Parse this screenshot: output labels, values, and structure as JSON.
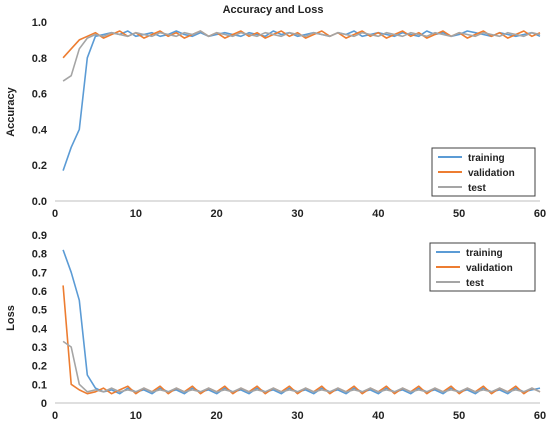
{
  "chart_data": [
    {
      "type": "line",
      "title": "Accuracy and Loss",
      "xlabel": "",
      "ylabel": "Accuracy",
      "xlim": [
        0,
        60
      ],
      "ylim": [
        0,
        1.0
      ],
      "xticks": [
        0,
        10,
        20,
        30,
        40,
        50,
        60
      ],
      "yticks": [
        0.0,
        0.2,
        0.4,
        0.6,
        0.8,
        1.0
      ],
      "ytick_labels": [
        "0.0",
        "0.2",
        "0.4",
        "0.6",
        "0.8",
        "1.0"
      ],
      "grid": false,
      "legend_position": "bottom-right",
      "x": [
        1,
        2,
        3,
        4,
        5,
        6,
        7,
        8,
        9,
        10,
        11,
        12,
        13,
        14,
        15,
        16,
        17,
        18,
        19,
        20,
        21,
        22,
        23,
        24,
        25,
        26,
        27,
        28,
        29,
        30,
        31,
        32,
        33,
        34,
        35,
        36,
        37,
        38,
        39,
        40,
        41,
        42,
        43,
        44,
        45,
        46,
        47,
        48,
        49,
        50,
        51,
        52,
        53,
        54,
        55,
        56,
        57,
        58,
        59,
        60
      ],
      "series": [
        {
          "name": "training",
          "color": "#5B9BD5",
          "values": [
            0.17,
            0.3,
            0.4,
            0.8,
            0.92,
            0.93,
            0.94,
            0.93,
            0.95,
            0.92,
            0.93,
            0.94,
            0.92,
            0.93,
            0.95,
            0.93,
            0.92,
            0.94,
            0.92,
            0.93,
            0.94,
            0.93,
            0.92,
            0.94,
            0.93,
            0.92,
            0.95,
            0.93,
            0.94,
            0.92,
            0.93,
            0.94,
            0.93,
            0.92,
            0.94,
            0.93,
            0.95,
            0.92,
            0.93,
            0.94,
            0.93,
            0.92,
            0.94,
            0.93,
            0.92,
            0.95,
            0.93,
            0.94,
            0.92,
            0.93,
            0.95,
            0.94,
            0.93,
            0.92,
            0.94,
            0.93,
            0.92,
            0.93,
            0.94,
            0.92
          ]
        },
        {
          "name": "validation",
          "color": "#ED7D31",
          "values": [
            0.8,
            0.85,
            0.9,
            0.92,
            0.94,
            0.91,
            0.93,
            0.95,
            0.92,
            0.94,
            0.91,
            0.93,
            0.95,
            0.92,
            0.94,
            0.91,
            0.93,
            0.95,
            0.92,
            0.94,
            0.91,
            0.93,
            0.95,
            0.92,
            0.94,
            0.91,
            0.93,
            0.95,
            0.92,
            0.94,
            0.91,
            0.93,
            0.95,
            0.92,
            0.94,
            0.91,
            0.93,
            0.95,
            0.92,
            0.94,
            0.91,
            0.93,
            0.95,
            0.92,
            0.94,
            0.91,
            0.93,
            0.95,
            0.92,
            0.94,
            0.91,
            0.93,
            0.95,
            0.92,
            0.94,
            0.91,
            0.93,
            0.95,
            0.92,
            0.94
          ]
        },
        {
          "name": "test",
          "color": "#A5A5A5",
          "values": [
            0.67,
            0.7,
            0.85,
            0.91,
            0.93,
            0.92,
            0.94,
            0.93,
            0.92,
            0.94,
            0.93,
            0.92,
            0.94,
            0.93,
            0.92,
            0.94,
            0.93,
            0.95,
            0.92,
            0.94,
            0.93,
            0.92,
            0.94,
            0.93,
            0.92,
            0.94,
            0.93,
            0.92,
            0.94,
            0.93,
            0.92,
            0.94,
            0.93,
            0.92,
            0.94,
            0.93,
            0.92,
            0.94,
            0.93,
            0.92,
            0.94,
            0.93,
            0.92,
            0.94,
            0.93,
            0.92,
            0.94,
            0.93,
            0.92,
            0.94,
            0.93,
            0.92,
            0.94,
            0.93,
            0.92,
            0.94,
            0.93,
            0.92,
            0.94,
            0.93
          ]
        }
      ]
    },
    {
      "type": "line",
      "title": "",
      "xlabel": "",
      "ylabel": "Loss",
      "xlim": [
        0,
        60
      ],
      "ylim": [
        0,
        0.9
      ],
      "xticks": [
        0,
        10,
        20,
        30,
        40,
        50,
        60
      ],
      "yticks": [
        0,
        0.1,
        0.2,
        0.3,
        0.4,
        0.5,
        0.6,
        0.7,
        0.8,
        0.9
      ],
      "ytick_labels": [
        "0",
        "0.1",
        "0.2",
        "0.3",
        "0.4",
        "0.5",
        "0.6",
        "0.7",
        "0.8",
        "0.9"
      ],
      "grid": false,
      "legend_position": "top-right",
      "x": [
        1,
        2,
        3,
        4,
        5,
        6,
        7,
        8,
        9,
        10,
        11,
        12,
        13,
        14,
        15,
        16,
        17,
        18,
        19,
        20,
        21,
        22,
        23,
        24,
        25,
        26,
        27,
        28,
        29,
        30,
        31,
        32,
        33,
        34,
        35,
        36,
        37,
        38,
        39,
        40,
        41,
        42,
        43,
        44,
        45,
        46,
        47,
        48,
        49,
        50,
        51,
        52,
        53,
        54,
        55,
        56,
        57,
        58,
        59,
        60
      ],
      "series": [
        {
          "name": "training",
          "color": "#5B9BD5",
          "values": [
            0.82,
            0.7,
            0.55,
            0.15,
            0.08,
            0.06,
            0.07,
            0.05,
            0.08,
            0.06,
            0.07,
            0.05,
            0.08,
            0.06,
            0.07,
            0.05,
            0.08,
            0.06,
            0.07,
            0.05,
            0.08,
            0.06,
            0.07,
            0.05,
            0.08,
            0.06,
            0.07,
            0.05,
            0.08,
            0.06,
            0.07,
            0.05,
            0.08,
            0.06,
            0.07,
            0.05,
            0.08,
            0.06,
            0.07,
            0.05,
            0.08,
            0.06,
            0.07,
            0.05,
            0.08,
            0.06,
            0.07,
            0.05,
            0.08,
            0.06,
            0.07,
            0.05,
            0.08,
            0.06,
            0.07,
            0.05,
            0.08,
            0.06,
            0.07,
            0.08
          ]
        },
        {
          "name": "validation",
          "color": "#ED7D31",
          "values": [
            0.63,
            0.1,
            0.07,
            0.05,
            0.06,
            0.08,
            0.05,
            0.07,
            0.09,
            0.05,
            0.08,
            0.06,
            0.09,
            0.05,
            0.08,
            0.06,
            0.09,
            0.05,
            0.08,
            0.06,
            0.09,
            0.05,
            0.08,
            0.06,
            0.09,
            0.05,
            0.08,
            0.06,
            0.09,
            0.05,
            0.08,
            0.06,
            0.09,
            0.05,
            0.08,
            0.06,
            0.09,
            0.05,
            0.08,
            0.06,
            0.09,
            0.05,
            0.08,
            0.06,
            0.09,
            0.05,
            0.08,
            0.06,
            0.09,
            0.05,
            0.08,
            0.06,
            0.09,
            0.05,
            0.08,
            0.06,
            0.09,
            0.05,
            0.08,
            0.06
          ]
        },
        {
          "name": "test",
          "color": "#A5A5A5",
          "values": [
            0.33,
            0.3,
            0.1,
            0.06,
            0.07,
            0.06,
            0.08,
            0.06,
            0.07,
            0.06,
            0.08,
            0.06,
            0.07,
            0.06,
            0.08,
            0.06,
            0.07,
            0.06,
            0.08,
            0.06,
            0.07,
            0.06,
            0.08,
            0.06,
            0.07,
            0.06,
            0.08,
            0.06,
            0.07,
            0.06,
            0.08,
            0.06,
            0.07,
            0.06,
            0.08,
            0.06,
            0.07,
            0.06,
            0.08,
            0.06,
            0.07,
            0.06,
            0.08,
            0.06,
            0.07,
            0.06,
            0.08,
            0.06,
            0.07,
            0.06,
            0.08,
            0.06,
            0.07,
            0.06,
            0.08,
            0.06,
            0.07,
            0.06,
            0.08,
            0.06
          ]
        }
      ]
    }
  ]
}
